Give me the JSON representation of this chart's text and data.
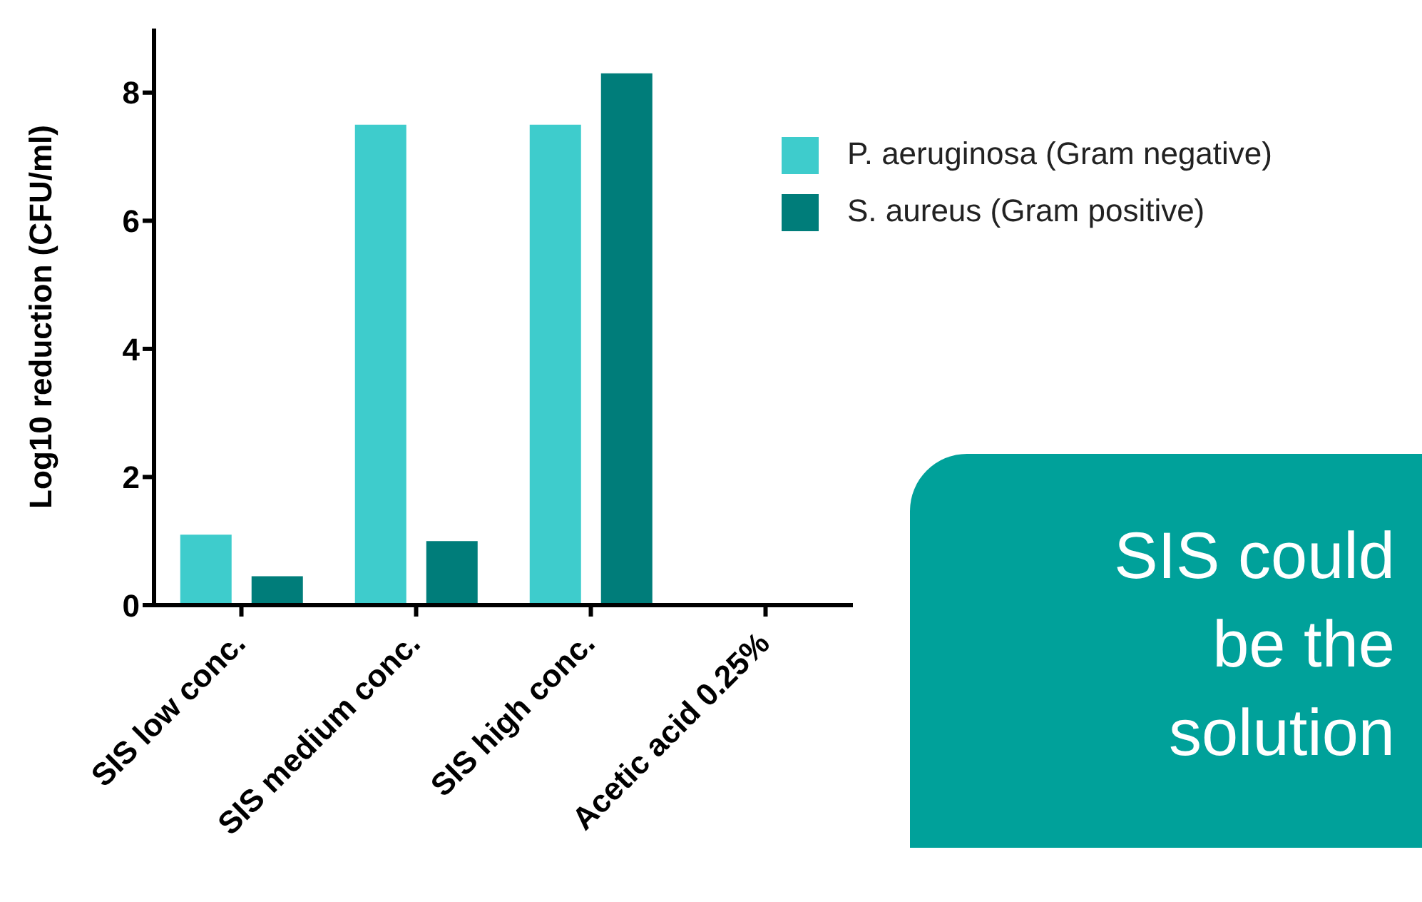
{
  "chart_data": {
    "type": "bar",
    "ylabel": "Log10 reduction (CFU/ml)",
    "categories": [
      "SIS low conc.",
      "SIS medium conc.",
      "SIS high conc.",
      "Acetic acid 0.25%"
    ],
    "series": [
      {
        "name": "P. aeruginosa (Gram negative)",
        "color": "#3ecccc",
        "values": [
          1.1,
          7.5,
          7.5,
          0
        ]
      },
      {
        "name": "S. aureus (Gram positive)",
        "color": "#007d7a",
        "values": [
          0.45,
          1.0,
          8.3,
          0
        ]
      }
    ],
    "ylim": [
      0,
      9
    ],
    "yticks": [
      0,
      2,
      4,
      6,
      8
    ],
    "grid": false,
    "legend": "right",
    "annotations": [
      "SIS could be the solution"
    ]
  }
}
